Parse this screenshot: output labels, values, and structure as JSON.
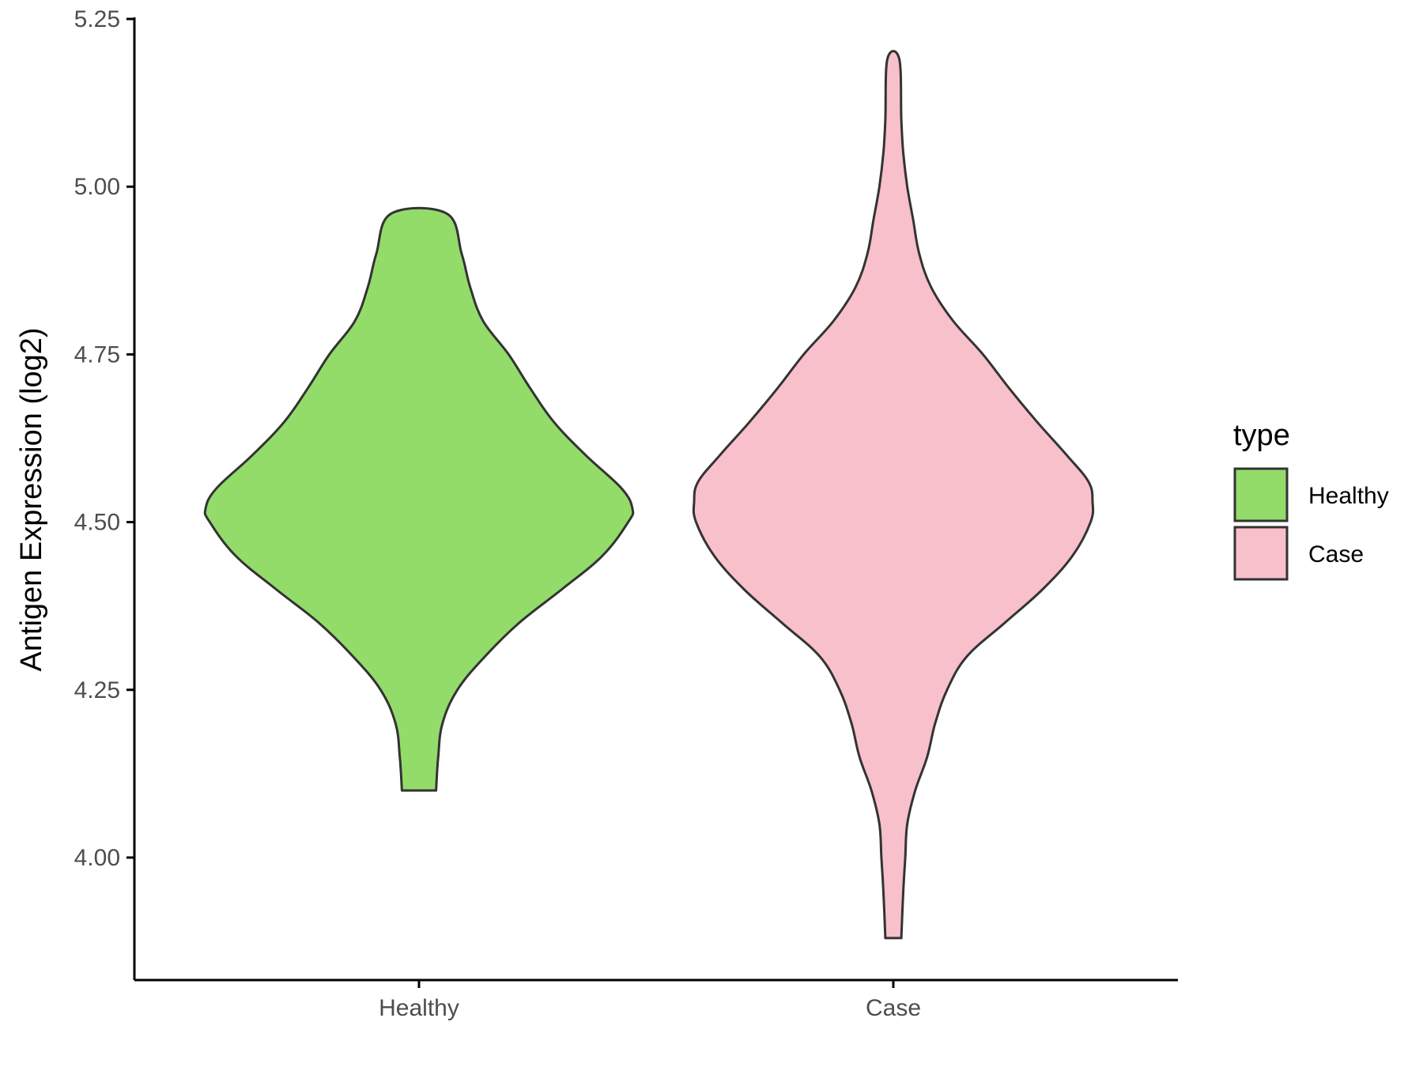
{
  "chart_data": {
    "type": "violin",
    "title": "",
    "xlabel": "",
    "ylabel": "Antigen Expression (log2)",
    "ylim": [
      3.82,
      5.25
    ],
    "yticks": [
      4.0,
      4.25,
      4.5,
      4.75,
      5.0,
      5.25
    ],
    "ytick_labels": [
      "4.00",
      "4.25",
      "4.50",
      "4.75",
      "5.00",
      "5.25"
    ],
    "categories": [
      "Healthy",
      "Case"
    ],
    "grid": false,
    "legend": {
      "title": "type",
      "position": "right",
      "entries": [
        "Healthy",
        "Case"
      ]
    },
    "series": [
      {
        "name": "Healthy",
        "color": "#93dc6a",
        "min": 4.1,
        "max": 4.96,
        "density_profile": [
          [
            4.1,
            0.08
          ],
          [
            4.15,
            0.09
          ],
          [
            4.2,
            0.11
          ],
          [
            4.25,
            0.18
          ],
          [
            4.3,
            0.31
          ],
          [
            4.35,
            0.47
          ],
          [
            4.4,
            0.67
          ],
          [
            4.45,
            0.86
          ],
          [
            4.5,
            0.98
          ],
          [
            4.52,
            1.0
          ],
          [
            4.55,
            0.95
          ],
          [
            4.6,
            0.78
          ],
          [
            4.65,
            0.63
          ],
          [
            4.7,
            0.52
          ],
          [
            4.75,
            0.42
          ],
          [
            4.8,
            0.3
          ],
          [
            4.85,
            0.24
          ],
          [
            4.9,
            0.2
          ],
          [
            4.96,
            0.13
          ]
        ]
      },
      {
        "name": "Case",
        "color": "#f8c0cb",
        "min": 3.88,
        "max": 5.19,
        "density_profile": [
          [
            3.88,
            0.04
          ],
          [
            3.95,
            0.05
          ],
          [
            4.0,
            0.06
          ],
          [
            4.05,
            0.07
          ],
          [
            4.1,
            0.11
          ],
          [
            4.15,
            0.17
          ],
          [
            4.2,
            0.21
          ],
          [
            4.25,
            0.27
          ],
          [
            4.3,
            0.37
          ],
          [
            4.35,
            0.56
          ],
          [
            4.4,
            0.75
          ],
          [
            4.45,
            0.9
          ],
          [
            4.5,
            0.99
          ],
          [
            4.53,
            1.0
          ],
          [
            4.56,
            0.98
          ],
          [
            4.6,
            0.87
          ],
          [
            4.65,
            0.72
          ],
          [
            4.7,
            0.58
          ],
          [
            4.75,
            0.45
          ],
          [
            4.8,
            0.3
          ],
          [
            4.85,
            0.19
          ],
          [
            4.9,
            0.13
          ],
          [
            4.95,
            0.1
          ],
          [
            5.0,
            0.07
          ],
          [
            5.05,
            0.05
          ],
          [
            5.1,
            0.04
          ],
          [
            5.19,
            0.03
          ]
        ]
      }
    ]
  }
}
